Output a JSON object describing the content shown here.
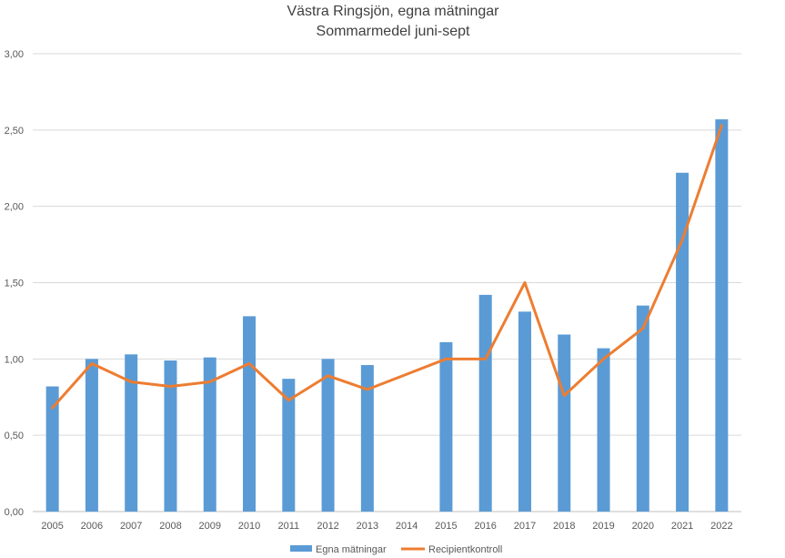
{
  "chart_data": {
    "type": "bar",
    "title": "Västra Ringsjön, egna mätningar",
    "subtitle": "Sommarmedel juni-sept",
    "xlabel": "",
    "ylabel": "",
    "ylim": [
      0,
      3
    ],
    "yticks": [
      "0,00",
      "0,50",
      "1,00",
      "1,50",
      "2,00",
      "2,50",
      "3,00"
    ],
    "grid": true,
    "legend_position": "bottom",
    "categories": [
      "2005",
      "2006",
      "2007",
      "2008",
      "2009",
      "2010",
      "2011",
      "2012",
      "2013",
      "2014",
      "2015",
      "2016",
      "2017",
      "2018",
      "2019",
      "2020",
      "2021",
      "2022"
    ],
    "series": [
      {
        "name": "Egna mätningar",
        "type": "bar",
        "color": "#5B9BD5",
        "values": [
          0.82,
          1.0,
          1.03,
          0.99,
          1.01,
          1.28,
          0.87,
          1.0,
          0.96,
          null,
          1.11,
          1.42,
          1.31,
          1.16,
          1.07,
          1.35,
          2.22,
          2.57
        ]
      },
      {
        "name": "Recipientkontroll",
        "type": "line",
        "color": "#ED7D31",
        "values": [
          0.68,
          0.97,
          0.85,
          0.82,
          0.85,
          0.97,
          0.73,
          0.89,
          0.8,
          0.9,
          1.0,
          1.0,
          1.5,
          0.76,
          1.0,
          1.2,
          1.78,
          2.53
        ]
      }
    ]
  }
}
